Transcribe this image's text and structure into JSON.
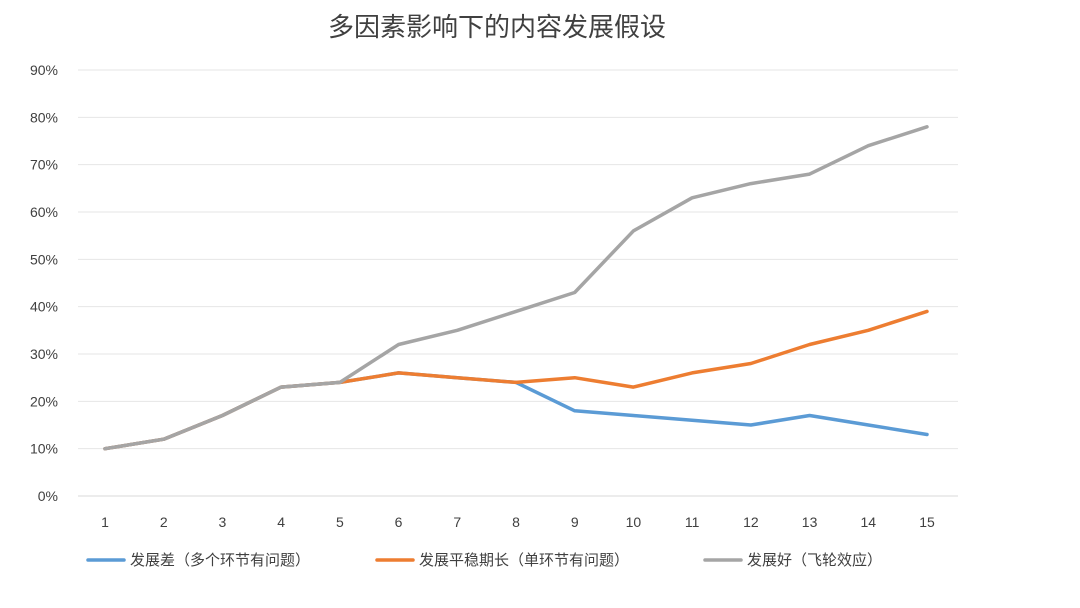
{
  "chart_data": {
    "type": "line",
    "title": "多因素影响下的内容发展假设",
    "xlabel": "",
    "ylabel": "",
    "x": [
      1,
      2,
      3,
      4,
      5,
      6,
      7,
      8,
      9,
      10,
      11,
      12,
      13,
      14,
      15
    ],
    "ylim": [
      0,
      90
    ],
    "y_ticks": [
      "0%",
      "10%",
      "20%",
      "30%",
      "40%",
      "50%",
      "60%",
      "70%",
      "80%",
      "90%"
    ],
    "y_unit": "%",
    "grid": true,
    "legend_position": "bottom",
    "series": [
      {
        "name": "发展差（多个环节有问题）",
        "color": "#5B9BD5",
        "values": [
          10,
          12,
          17,
          23,
          24,
          26,
          25,
          24,
          18,
          17,
          16,
          15,
          17,
          15,
          13
        ]
      },
      {
        "name": "发展平稳期长（单环节有问题）",
        "color": "#ED7D31",
        "values": [
          10,
          12,
          17,
          23,
          24,
          26,
          25,
          24,
          25,
          23,
          26,
          28,
          32,
          35,
          39
        ]
      },
      {
        "name": "发展好（飞轮效应）",
        "color": "#A5A5A5",
        "values": [
          10,
          12,
          17,
          23,
          24,
          32,
          35,
          39,
          43,
          56,
          63,
          66,
          68,
          74,
          78
        ]
      }
    ]
  }
}
